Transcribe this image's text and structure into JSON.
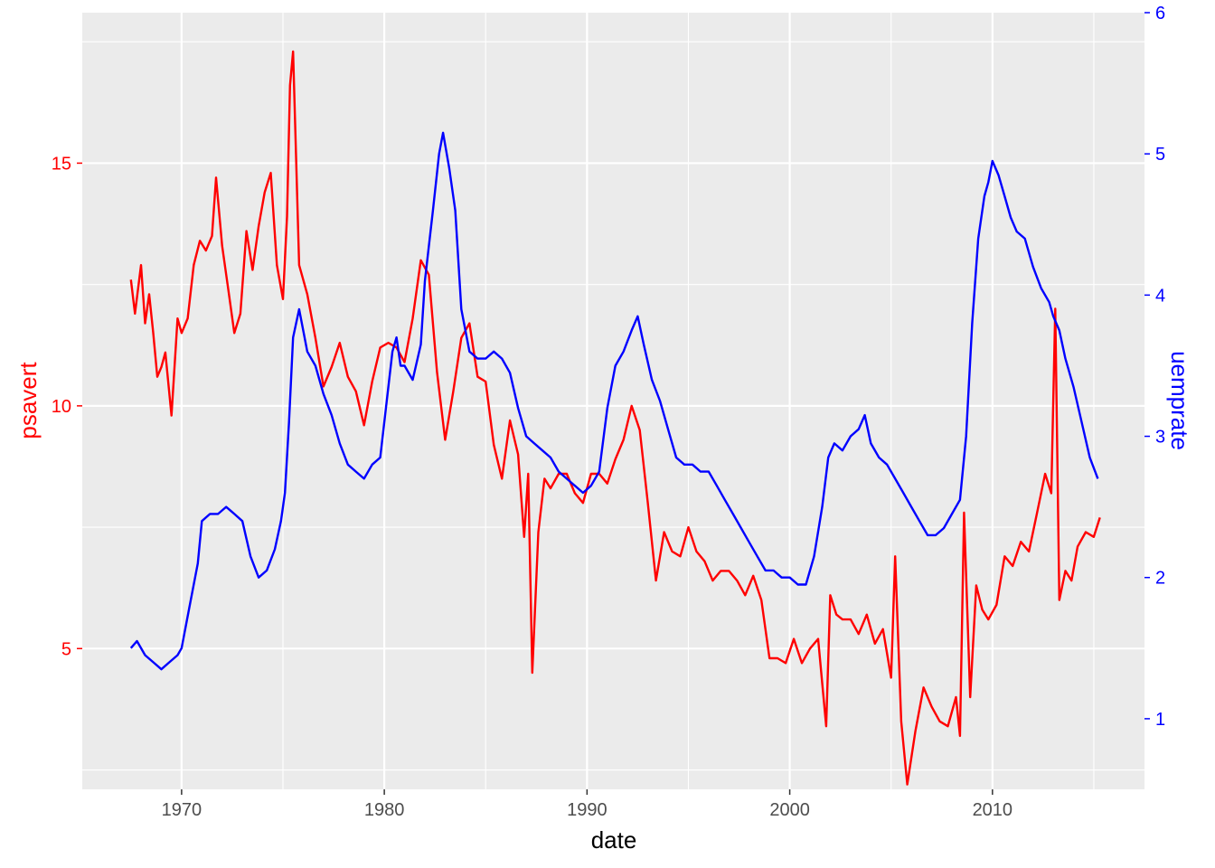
{
  "chart_data": {
    "type": "line",
    "title": "",
    "xlabel": "date",
    "ylabel": "psavert",
    "ylabel_right": "uemprate",
    "xlim": [
      1965.1,
      2017.5
    ],
    "ylim": [
      2.1,
      18.1
    ],
    "ylim_right": [
      0.5,
      6.0
    ],
    "x_ticks": [
      1970,
      1980,
      1990,
      2000,
      2010
    ],
    "x_tick_labels": [
      "1970",
      "1980",
      "1990",
      "2000",
      "2010"
    ],
    "y_ticks": [
      5,
      10,
      15
    ],
    "y_tick_labels": [
      "5",
      "10",
      "15"
    ],
    "y_ticks_right": [
      1,
      2,
      3,
      4,
      5,
      6
    ],
    "y_tick_labels_right": [
      "1",
      "2",
      "3",
      "4",
      "5",
      "6"
    ],
    "grid": true,
    "background": "#EBEBEB",
    "series": [
      {
        "name": "psavert",
        "color": "#FF0000",
        "axis": "left",
        "x": [
          1967.5,
          1967.7,
          1968.0,
          1968.2,
          1968.4,
          1968.6,
          1968.8,
          1969.0,
          1969.2,
          1969.5,
          1969.8,
          1970.0,
          1970.3,
          1970.6,
          1970.9,
          1971.2,
          1971.5,
          1971.7,
          1972.0,
          1972.3,
          1972.6,
          1972.9,
          1973.2,
          1973.5,
          1973.8,
          1974.1,
          1974.4,
          1974.7,
          1975.0,
          1975.2,
          1975.35,
          1975.5,
          1975.8,
          1976.2,
          1976.6,
          1977.0,
          1977.4,
          1977.8,
          1978.2,
          1978.6,
          1979.0,
          1979.4,
          1979.8,
          1980.2,
          1980.6,
          1981.0,
          1981.4,
          1981.8,
          1982.2,
          1982.6,
          1983.0,
          1983.4,
          1983.8,
          1984.2,
          1984.6,
          1985.0,
          1985.4,
          1985.8,
          1986.2,
          1986.6,
          1986.9,
          1987.1,
          1987.3,
          1987.6,
          1987.9,
          1988.2,
          1988.6,
          1989.0,
          1989.4,
          1989.8,
          1990.2,
          1990.6,
          1991.0,
          1991.4,
          1991.8,
          1992.2,
          1992.6,
          1993.0,
          1993.4,
          1993.8,
          1994.2,
          1994.6,
          1995.0,
          1995.4,
          1995.8,
          1996.2,
          1996.6,
          1997.0,
          1997.4,
          1997.8,
          1998.2,
          1998.6,
          1999.0,
          1999.4,
          1999.8,
          2000.2,
          2000.6,
          2001.0,
          2001.4,
          2001.8,
          2002.0,
          2002.3,
          2002.6,
          2003.0,
          2003.4,
          2003.8,
          2004.2,
          2004.6,
          2005.0,
          2005.2,
          2005.5,
          2005.8,
          2006.2,
          2006.6,
          2007.0,
          2007.4,
          2007.8,
          2008.2,
          2008.4,
          2008.6,
          2008.9,
          2009.2,
          2009.5,
          2009.8,
          2010.2,
          2010.6,
          2011.0,
          2011.4,
          2011.8,
          2012.2,
          2012.6,
          2012.9,
          2013.1,
          2013.3,
          2013.6,
          2013.9,
          2014.2,
          2014.6,
          2015.0,
          2015.3
        ],
        "values": [
          12.6,
          11.9,
          12.9,
          11.7,
          12.3,
          11.5,
          10.6,
          10.8,
          11.1,
          9.8,
          11.8,
          11.5,
          11.8,
          12.9,
          13.4,
          13.2,
          13.5,
          14.7,
          13.3,
          12.4,
          11.5,
          11.9,
          13.6,
          12.8,
          13.7,
          14.4,
          14.8,
          12.9,
          12.2,
          13.9,
          16.6,
          17.3,
          12.9,
          12.3,
          11.4,
          10.4,
          10.8,
          11.3,
          10.6,
          10.3,
          9.6,
          10.5,
          11.2,
          11.3,
          11.2,
          10.9,
          11.8,
          13.0,
          12.7,
          10.7,
          9.3,
          10.3,
          11.4,
          11.7,
          10.6,
          10.5,
          9.2,
          8.5,
          9.7,
          9.0,
          7.3,
          8.6,
          4.5,
          7.4,
          8.5,
          8.3,
          8.6,
          8.6,
          8.2,
          8.0,
          8.6,
          8.6,
          8.4,
          8.9,
          9.3,
          10.0,
          9.5,
          8.0,
          6.4,
          7.4,
          7.0,
          6.9,
          7.5,
          7.0,
          6.8,
          6.4,
          6.6,
          6.6,
          6.4,
          6.1,
          6.5,
          6.0,
          4.8,
          4.8,
          4.7,
          5.2,
          4.7,
          5.0,
          5.2,
          3.4,
          6.1,
          5.7,
          5.6,
          5.6,
          5.3,
          5.7,
          5.1,
          5.4,
          4.4,
          6.9,
          3.5,
          2.2,
          3.3,
          4.2,
          3.8,
          3.5,
          3.4,
          4.0,
          3.2,
          7.8,
          4.0,
          6.3,
          5.8,
          5.6,
          5.9,
          6.9,
          6.7,
          7.2,
          7.0,
          7.8,
          8.6,
          8.2,
          12.0,
          6.0,
          6.6,
          6.4,
          7.1,
          7.4,
          7.3,
          7.7
        ]
      },
      {
        "name": "uemprate",
        "color": "#0000FF",
        "axis": "right",
        "x": [
          1967.5,
          1967.8,
          1968.2,
          1968.6,
          1969.0,
          1969.4,
          1969.8,
          1970.0,
          1970.4,
          1970.8,
          1971.0,
          1971.4,
          1971.8,
          1972.2,
          1972.6,
          1973.0,
          1973.4,
          1973.8,
          1974.2,
          1974.6,
          1974.9,
          1975.1,
          1975.3,
          1975.5,
          1975.8,
          1976.2,
          1976.6,
          1977.0,
          1977.4,
          1977.8,
          1978.2,
          1978.6,
          1979.0,
          1979.4,
          1979.8,
          1980.2,
          1980.4,
          1980.6,
          1980.8,
          1981.0,
          1981.4,
          1981.8,
          1982.0,
          1982.4,
          1982.7,
          1982.9,
          1983.2,
          1983.5,
          1983.8,
          1984.2,
          1984.6,
          1985.0,
          1985.4,
          1985.8,
          1986.2,
          1986.6,
          1987.0,
          1987.4,
          1987.8,
          1988.2,
          1988.6,
          1989.0,
          1989.4,
          1989.8,
          1990.2,
          1990.6,
          1991.0,
          1991.4,
          1991.8,
          1992.2,
          1992.5,
          1992.8,
          1993.2,
          1993.6,
          1994.0,
          1994.4,
          1994.8,
          1995.2,
          1995.6,
          1996.0,
          1996.4,
          1996.8,
          1997.2,
          1997.6,
          1998.0,
          1998.4,
          1998.8,
          1999.2,
          1999.6,
          2000.0,
          2000.4,
          2000.8,
          2001.2,
          2001.6,
          2001.9,
          2002.2,
          2002.6,
          2003.0,
          2003.4,
          2003.7,
          2004.0,
          2004.4,
          2004.8,
          2005.2,
          2005.6,
          2006.0,
          2006.4,
          2006.8,
          2007.2,
          2007.6,
          2008.0,
          2008.4,
          2008.7,
          2009.0,
          2009.3,
          2009.6,
          2009.8,
          2010.0,
          2010.3,
          2010.6,
          2010.9,
          2011.2,
          2011.6,
          2012.0,
          2012.4,
          2012.8,
          2013.0,
          2013.3,
          2013.6,
          2014.0,
          2014.4,
          2014.8,
          2015.2
        ],
        "values": [
          1.5,
          1.55,
          1.45,
          1.4,
          1.35,
          1.4,
          1.45,
          1.5,
          1.8,
          2.1,
          2.4,
          2.45,
          2.45,
          2.5,
          2.45,
          2.4,
          2.15,
          2.0,
          2.05,
          2.2,
          2.4,
          2.6,
          3.1,
          3.7,
          3.9,
          3.6,
          3.5,
          3.3,
          3.15,
          2.95,
          2.8,
          2.75,
          2.7,
          2.8,
          2.85,
          3.35,
          3.6,
          3.7,
          3.5,
          3.5,
          3.4,
          3.65,
          4.1,
          4.6,
          5.0,
          5.15,
          4.9,
          4.6,
          3.9,
          3.6,
          3.55,
          3.55,
          3.6,
          3.55,
          3.45,
          3.2,
          3.0,
          2.95,
          2.9,
          2.85,
          2.75,
          2.7,
          2.65,
          2.6,
          2.65,
          2.75,
          3.2,
          3.5,
          3.6,
          3.75,
          3.85,
          3.65,
          3.4,
          3.25,
          3.05,
          2.85,
          2.8,
          2.8,
          2.75,
          2.75,
          2.65,
          2.55,
          2.45,
          2.35,
          2.25,
          2.15,
          2.05,
          2.05,
          2.0,
          2.0,
          1.95,
          1.95,
          2.15,
          2.5,
          2.85,
          2.95,
          2.9,
          3.0,
          3.05,
          3.15,
          2.95,
          2.85,
          2.8,
          2.7,
          2.6,
          2.5,
          2.4,
          2.3,
          2.3,
          2.35,
          2.45,
          2.55,
          3.0,
          3.8,
          4.4,
          4.7,
          4.8,
          4.95,
          4.85,
          4.7,
          4.55,
          4.45,
          4.4,
          4.2,
          4.05,
          3.95,
          3.85,
          3.75,
          3.55,
          3.35,
          3.1,
          2.85,
          2.7
        ]
      }
    ]
  }
}
